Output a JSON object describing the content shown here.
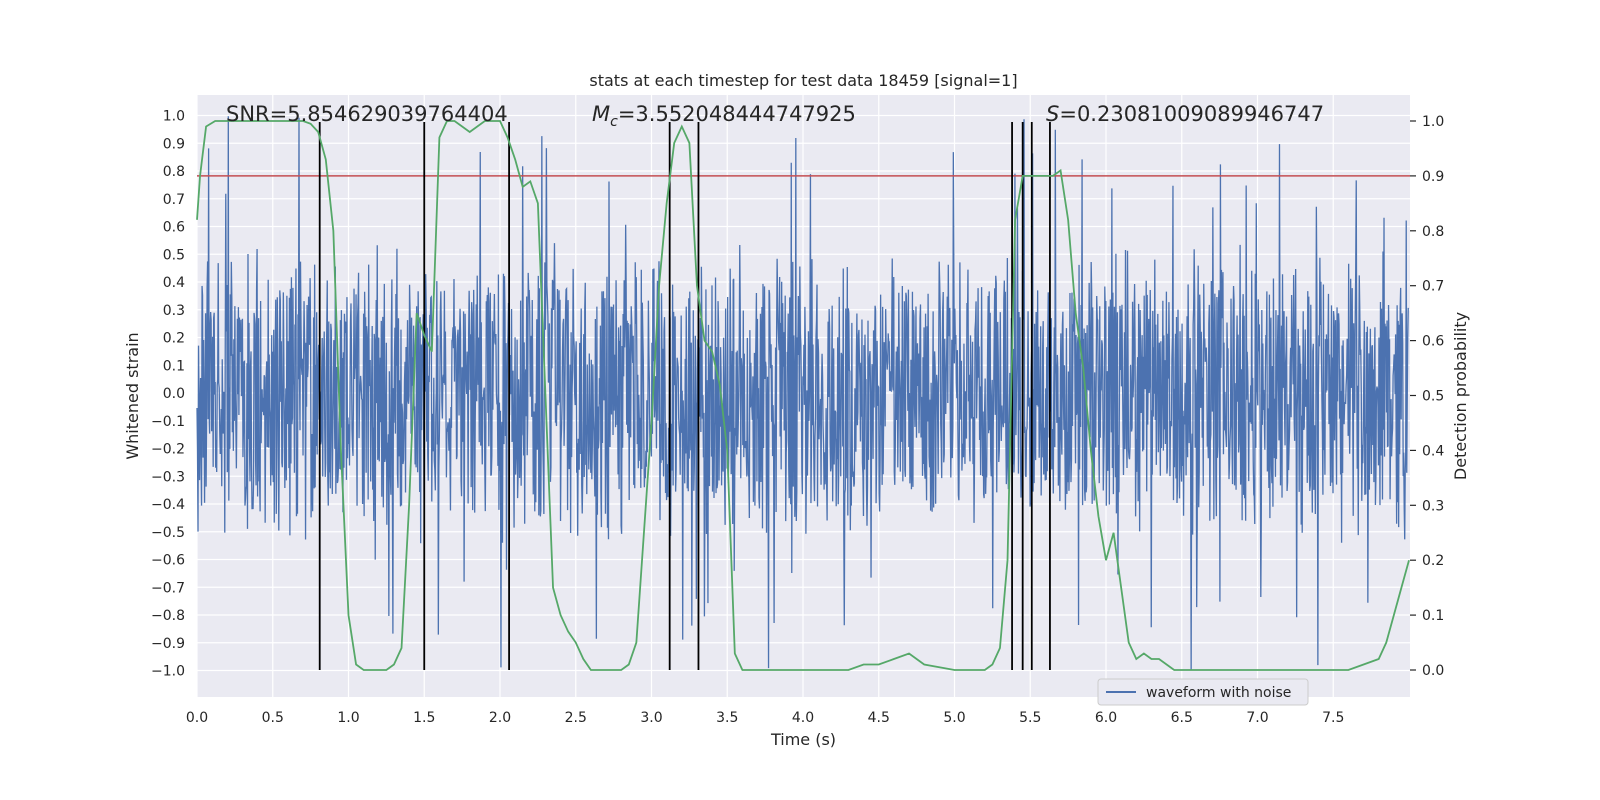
{
  "chart_data": {
    "type": "line",
    "title": "stats at each timestep for test data 18459 [signal=1]",
    "xlabel": "Time (s)",
    "ylabel_left": "Whitened strain",
    "ylabel_right": "Detection probability",
    "xlim": [
      0.0,
      8.0
    ],
    "ylim_left": [
      -1.1,
      1.05
    ],
    "ylim_right": [
      -0.05,
      1.04
    ],
    "x_ticks": [
      "0.0",
      "0.5",
      "1.0",
      "1.5",
      "2.0",
      "2.5",
      "3.0",
      "3.5",
      "4.0",
      "4.5",
      "5.0",
      "5.5",
      "6.0",
      "6.5",
      "7.0",
      "7.5"
    ],
    "x_tick_values": [
      0.0,
      0.5,
      1.0,
      1.5,
      2.0,
      2.5,
      3.0,
      3.5,
      4.0,
      4.5,
      5.0,
      5.5,
      6.0,
      6.5,
      7.0,
      7.5
    ],
    "y_left_ticks": [
      "1.0",
      "0.9",
      "0.8",
      "0.7",
      "0.6",
      "0.5",
      "0.4",
      "0.3",
      "0.2",
      "0.1",
      "0.0",
      "−0.1",
      "−0.2",
      "−0.3",
      "−0.4",
      "−0.5",
      "−0.6",
      "−0.7",
      "−0.8",
      "−0.9",
      "−1.0"
    ],
    "y_left_tick_values": [
      1.0,
      0.9,
      0.8,
      0.7,
      0.6,
      0.5,
      0.4,
      0.3,
      0.2,
      0.1,
      0.0,
      -0.1,
      -0.2,
      -0.3,
      -0.4,
      -0.5,
      -0.6,
      -0.7,
      -0.8,
      -0.9,
      -1.0
    ],
    "y_right_ticks": [
      "1.0",
      "0.9",
      "0.8",
      "0.7",
      "0.6",
      "0.5",
      "0.4",
      "0.3",
      "0.2",
      "0.1",
      "0.0"
    ],
    "y_right_tick_values": [
      1.0,
      0.9,
      0.8,
      0.7,
      0.6,
      0.5,
      0.4,
      0.3,
      0.2,
      0.1,
      0.0
    ],
    "annotations": {
      "snr": "SNR=5.854629039764404",
      "mc_symbol": "M",
      "mc_sub": "c",
      "mc_value": "=3.552048444747925",
      "s_symbol": "S",
      "s_value": "=0.23081009089946747"
    },
    "threshold": {
      "value": 0.9,
      "axis": "right",
      "color": "#c44e52"
    },
    "vertical_lines_x": [
      0.81,
      1.5,
      2.06,
      3.12,
      3.31,
      5.38,
      5.45,
      5.51,
      5.63
    ],
    "series": [
      {
        "name": "waveform with noise",
        "axis": "left",
        "color": "#4c72b0",
        "description": "dense whitened-strain noise trace, bulk within about ±0.55 with spikes reaching about ±1.0",
        "envelope_typical": 0.55,
        "spike_max": 1.0
      },
      {
        "name": "detection probability",
        "axis": "right",
        "color": "#55a868",
        "x": [
          0.0,
          0.02,
          0.06,
          0.12,
          0.2,
          0.3,
          0.4,
          0.5,
          0.6,
          0.7,
          0.75,
          0.8,
          0.85,
          0.9,
          0.95,
          1.0,
          1.05,
          1.1,
          1.2,
          1.25,
          1.3,
          1.35,
          1.4,
          1.45,
          1.5,
          1.55,
          1.6,
          1.65,
          1.7,
          1.75,
          1.8,
          1.85,
          1.9,
          2.0,
          2.05,
          2.1,
          2.15,
          2.2,
          2.25,
          2.3,
          2.35,
          2.4,
          2.45,
          2.5,
          2.55,
          2.6,
          2.7,
          2.8,
          2.85,
          2.9,
          3.0,
          3.05,
          3.1,
          3.15,
          3.2,
          3.25,
          3.3,
          3.35,
          3.4,
          3.45,
          3.5,
          3.55,
          3.6,
          3.7,
          3.9,
          4.1,
          4.3,
          4.4,
          4.5,
          4.6,
          4.7,
          4.8,
          5.0,
          5.1,
          5.2,
          5.25,
          5.3,
          5.35,
          5.4,
          5.45,
          5.5,
          5.55,
          5.6,
          5.65,
          5.7,
          5.75,
          5.8,
          5.85,
          5.9,
          5.95,
          6.0,
          6.05,
          6.1,
          6.15,
          6.2,
          6.25,
          6.3,
          6.35,
          6.4,
          6.45,
          6.5,
          6.6,
          6.8,
          7.0,
          7.2,
          7.4,
          7.5,
          7.6,
          7.7,
          7.8,
          7.85,
          7.9,
          7.95,
          8.0
        ],
        "values": [
          0.82,
          0.9,
          0.99,
          1.0,
          1.0,
          1.0,
          1.0,
          1.0,
          1.0,
          1.0,
          0.995,
          0.98,
          0.93,
          0.8,
          0.4,
          0.1,
          0.01,
          0.0,
          0.0,
          0.0,
          0.01,
          0.04,
          0.3,
          0.65,
          0.61,
          0.58,
          0.97,
          1.0,
          1.0,
          0.99,
          0.98,
          0.99,
          1.0,
          1.0,
          0.97,
          0.93,
          0.88,
          0.89,
          0.85,
          0.5,
          0.15,
          0.1,
          0.07,
          0.05,
          0.02,
          0.0,
          0.0,
          0.0,
          0.01,
          0.05,
          0.45,
          0.7,
          0.85,
          0.96,
          0.99,
          0.96,
          0.7,
          0.6,
          0.58,
          0.52,
          0.4,
          0.03,
          0.0,
          0.0,
          0.0,
          0.0,
          0.0,
          0.01,
          0.01,
          0.02,
          0.03,
          0.01,
          0.0,
          0.0,
          0.0,
          0.01,
          0.04,
          0.2,
          0.82,
          0.9,
          0.9,
          0.9,
          0.9,
          0.9,
          0.91,
          0.82,
          0.65,
          0.55,
          0.4,
          0.28,
          0.2,
          0.25,
          0.15,
          0.05,
          0.02,
          0.03,
          0.02,
          0.02,
          0.01,
          0.0,
          0.0,
          0.0,
          0.0,
          0.0,
          0.0,
          0.0,
          0.0,
          0.0,
          0.01,
          0.02,
          0.05,
          0.1,
          0.15,
          0.2
        ]
      }
    ],
    "legend": {
      "position": "lower-right",
      "entries": [
        "waveform with noise"
      ]
    }
  }
}
